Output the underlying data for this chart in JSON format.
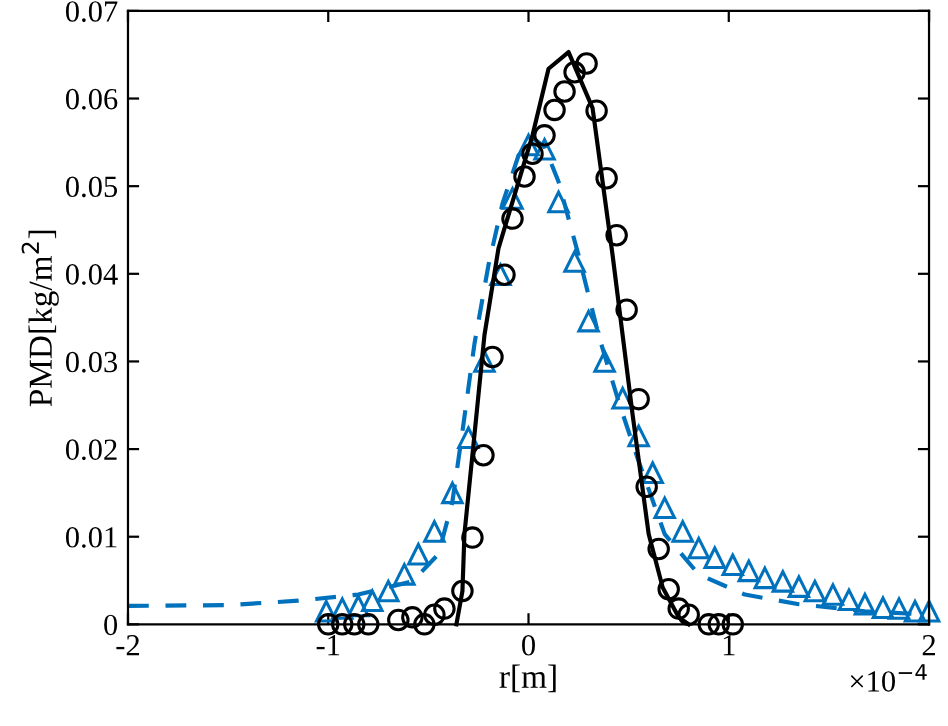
{
  "chart_data": {
    "type": "line",
    "xlabel": "r[m]",
    "ylabel": "PMD[kg/m$^{2}$]",
    "annotations": [
      "×10$^{−4}$"
    ],
    "xlim": [
      -2,
      2
    ],
    "xticks": [
      -2,
      -1,
      0,
      1,
      2
    ],
    "ylim": [
      0,
      0.07
    ],
    "yticks": [
      0,
      0.01,
      0.02,
      0.03,
      0.04,
      0.05,
      0.06,
      0.07
    ],
    "grid": false,
    "legend": false,
    "series": [
      {
        "color": "#0072bd",
        "line_style": "dashed",
        "marker": "none",
        "x": [
          -2.0,
          -1.5,
          -1.15,
          -0.85,
          -0.58,
          -0.45,
          -0.38,
          -0.33,
          -0.27,
          -0.2,
          -0.13,
          -0.05,
          0.02,
          0.08,
          0.15,
          0.25,
          0.35,
          0.45,
          0.55,
          0.68,
          0.85,
          1.08,
          1.35,
          1.68,
          2.0
        ],
        "values": [
          0.0021,
          0.0022,
          0.0027,
          0.0034,
          0.0049,
          0.008,
          0.014,
          0.022,
          0.032,
          0.041,
          0.048,
          0.0535,
          0.0555,
          0.0545,
          0.0505,
          0.0421,
          0.033,
          0.0254,
          0.0186,
          0.0103,
          0.0057,
          0.0034,
          0.0023,
          0.0015,
          0.0011
        ]
      },
      {
        "type": "scatter",
        "color": "#0072bd",
        "marker": "triangle",
        "x": [
          -1.01,
          -0.93,
          -0.85,
          -0.78,
          -0.7,
          -0.62,
          -0.55,
          -0.47,
          -0.38,
          -0.3,
          -0.22,
          -0.14,
          -0.08,
          0.0,
          0.08,
          0.15,
          0.23,
          0.3,
          0.38,
          0.47,
          0.55,
          0.62,
          0.68,
          0.77,
          0.85,
          0.93,
          1.02,
          1.1,
          1.18,
          1.27,
          1.35,
          1.43,
          1.52,
          1.6,
          1.68,
          1.77,
          1.85,
          1.93,
          2.0
        ],
        "values": [
          0.0015,
          0.0018,
          0.0021,
          0.0027,
          0.0038,
          0.0057,
          0.008,
          0.0106,
          0.015,
          0.0213,
          0.03,
          0.0399,
          0.0486,
          0.0547,
          0.0542,
          0.0482,
          0.0414,
          0.0346,
          0.03,
          0.0258,
          0.0215,
          0.0173,
          0.0133,
          0.0106,
          0.0087,
          0.0076,
          0.0068,
          0.0061,
          0.0053,
          0.0049,
          0.0043,
          0.0038,
          0.0034,
          0.0028,
          0.0023,
          0.0019,
          0.0018,
          0.0015,
          0.0015
        ]
      },
      {
        "color": "#000000",
        "line_style": "solid",
        "marker": "none",
        "x": [
          -0.36,
          -0.33,
          -0.32,
          -0.27,
          -0.22,
          -0.15,
          -0.05,
          0.02,
          0.1,
          0.2,
          0.32,
          0.42,
          0.52,
          0.6,
          0.67,
          0.75,
          0.8
        ],
        "values": [
          0,
          0.0038,
          0.0103,
          0.0216,
          0.033,
          0.0429,
          0.0505,
          0.0558,
          0.0634,
          0.0653,
          0.0589,
          0.0421,
          0.0239,
          0.0103,
          0.0042,
          0.0008,
          0
        ]
      },
      {
        "type": "scatter",
        "color": "#000000",
        "marker": "circle",
        "x": [
          -1.0,
          -0.93,
          -0.87,
          -0.8,
          -0.65,
          -0.58,
          -0.52,
          -0.47,
          -0.42,
          -0.33,
          -0.28,
          -0.225,
          -0.18,
          -0.12,
          -0.08,
          -0.02,
          0.02,
          0.08,
          0.13,
          0.18,
          0.23,
          0.29,
          0.34,
          0.39,
          0.44,
          0.49,
          0.55,
          0.59,
          0.65,
          0.7,
          0.75,
          0.8,
          0.9,
          0.95,
          1.02
        ],
        "values": [
          0,
          0,
          0,
          0,
          0.0005,
          0.0008,
          0,
          0.0011,
          0.0018,
          0.0038,
          0.0099,
          0.0193,
          0.0305,
          0.0399,
          0.0463,
          0.0511,
          0.0537,
          0.0558,
          0.0587,
          0.0608,
          0.063,
          0.064,
          0.0586,
          0.0509,
          0.0444,
          0.0359,
          0.0257,
          0.0157,
          0.0086,
          0.004,
          0.0018,
          0.0011,
          0,
          0,
          0
        ]
      }
    ]
  }
}
